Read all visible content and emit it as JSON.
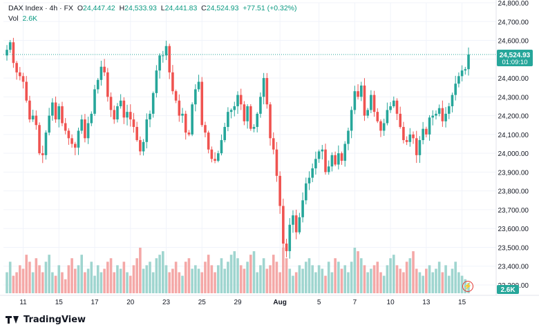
{
  "legend": {
    "symbol": "DAX Index",
    "interval": "4h",
    "exchange": "FX",
    "open_label": "O",
    "open": "24,447.42",
    "high_label": "H",
    "high": "24,533.93",
    "low_label": "L",
    "low": "24,441.83",
    "close_label": "C",
    "close": "24,524.93",
    "change": "+77.51 (+0.32%)",
    "vol_label": "Vol",
    "vol": "2.6K"
  },
  "price_tag": {
    "price": "24,524.93",
    "countdown": "01:09:10",
    "value": 24524.93
  },
  "volume_tag": "2.6K",
  "brand": "TradingView",
  "colors": {
    "up": "#26a69a",
    "down": "#ef5350",
    "vol_up": "#9fd5cf",
    "vol_down": "#f4a8a7",
    "grid": "#f0f3fa",
    "axis_text": "#131722"
  },
  "chart_data": {
    "type": "candlestick",
    "yaxis_ticks": [
      "24,800.00",
      "24,700.00",
      "24,600.00",
      "24,500.00",
      "24,400.00",
      "24,300.00",
      "24,200.00",
      "24,100.00",
      "24,000.00",
      "23,900.00",
      "23,800.00",
      "23,700.00",
      "23,600.00",
      "23,500.00",
      "23,400.00",
      "23,300.00"
    ],
    "ylim": [
      23300,
      24800
    ],
    "xaxis_ticks": [
      {
        "label": "11",
        "index": 5,
        "bold": false
      },
      {
        "label": "15",
        "index": 16,
        "bold": false
      },
      {
        "label": "17",
        "index": 27,
        "bold": false
      },
      {
        "label": "20",
        "index": 38,
        "bold": false
      },
      {
        "label": "23",
        "index": 49,
        "bold": false
      },
      {
        "label": "25",
        "index": 60,
        "bold": false
      },
      {
        "label": "29",
        "index": 71,
        "bold": false
      },
      {
        "label": "Aug",
        "index": 84,
        "bold": true
      },
      {
        "label": "5",
        "index": 96,
        "bold": false
      },
      {
        "label": "7",
        "index": 107,
        "bold": false
      },
      {
        "label": "10",
        "index": 118,
        "bold": false
      },
      {
        "label": "13",
        "index": 129,
        "bold": false
      },
      {
        "label": "15",
        "index": 140,
        "bold": false
      }
    ],
    "closes": [
      24550,
      24590,
      24480,
      24430,
      24410,
      24380,
      24280,
      24180,
      24200,
      24150,
      24000,
      23990,
      24110,
      24200,
      24270,
      24180,
      24250,
      24160,
      24120,
      24080,
      24050,
      24030,
      24120,
      24180,
      24080,
      24160,
      24210,
      24340,
      24390,
      24460,
      24430,
      24300,
      24230,
      24180,
      24250,
      24280,
      24190,
      24220,
      24180,
      24140,
      24070,
      24010,
      24060,
      24180,
      24210,
      24320,
      24440,
      24520,
      24520,
      24570,
      24430,
      24330,
      24280,
      24200,
      24210,
      24110,
      24100,
      24260,
      24340,
      24380,
      24150,
      24110,
      24020,
      23970,
      23960,
      24000,
      24070,
      24140,
      24220,
      24230,
      24250,
      24310,
      24260,
      24170,
      24250,
      24130,
      24140,
      24210,
      24300,
      24400,
      24260,
      24080,
      24020,
      23880,
      23720,
      23520,
      23480,
      23620,
      23670,
      23580,
      23660,
      23750,
      23840,
      23870,
      23920,
      23970,
      24010,
      24020,
      23900,
      23930,
      23990,
      23940,
      24000,
      23960,
      24050,
      24120,
      24230,
      24330,
      24300,
      24360,
      24200,
      24230,
      24310,
      24220,
      24170,
      24120,
      24160,
      24230,
      24250,
      24280,
      24210,
      24140,
      24070,
      24060,
      24100,
      24080,
      23990,
      24070,
      24130,
      24100,
      24190,
      24200,
      24210,
      24240,
      24170,
      24210,
      24250,
      24310,
      24370,
      24410,
      24440,
      24447,
      24525
    ],
    "volumes": [
      3.0,
      4.5,
      2.5,
      3.0,
      4.0,
      3.5,
      5.5,
      4.5,
      3.0,
      5.0,
      4.0,
      3.0,
      4.5,
      5.5,
      3.0,
      2.5,
      4.0,
      3.0,
      2.0,
      4.0,
      5.0,
      3.5,
      4.0,
      5.5,
      3.0,
      3.5,
      4.5,
      2.5,
      4.0,
      3.0,
      3.5,
      4.5,
      5.0,
      3.0,
      4.0,
      3.5,
      4.5,
      3.0,
      2.5,
      4.0,
      5.0,
      6.5,
      3.5,
      4.0,
      4.5,
      3.0,
      5.0,
      5.5,
      6.0,
      4.0,
      3.0,
      3.5,
      4.5,
      3.0,
      2.5,
      4.5,
      5.0,
      3.5,
      4.0,
      3.5,
      3.0,
      4.5,
      5.5,
      4.0,
      3.0,
      4.0,
      5.0,
      3.5,
      4.5,
      5.5,
      6.0,
      5.0,
      4.0,
      3.5,
      4.5,
      5.5,
      6.0,
      3.0,
      4.0,
      5.0,
      3.5,
      4.0,
      5.5,
      4.5,
      3.0,
      6.5,
      5.0,
      3.5,
      2.5,
      3.0,
      4.0,
      3.5,
      4.5,
      5.0,
      4.0,
      3.0,
      4.0,
      3.5,
      2.5,
      4.5,
      3.0,
      5.0,
      4.5,
      3.5,
      4.0,
      3.0,
      4.5,
      6.5,
      6.0,
      5.0,
      4.0,
      3.0,
      3.5,
      4.0,
      4.5,
      3.0,
      2.5,
      4.0,
      5.0,
      5.5,
      4.0,
      3.5,
      3.0,
      4.5,
      5.0,
      6.0,
      3.5,
      3.0,
      2.5,
      3.5,
      4.0,
      3.0,
      3.5,
      4.5,
      3.0,
      4.0,
      2.5,
      3.5,
      4.5,
      3.0,
      2.5,
      2.0,
      1.5
    ]
  }
}
